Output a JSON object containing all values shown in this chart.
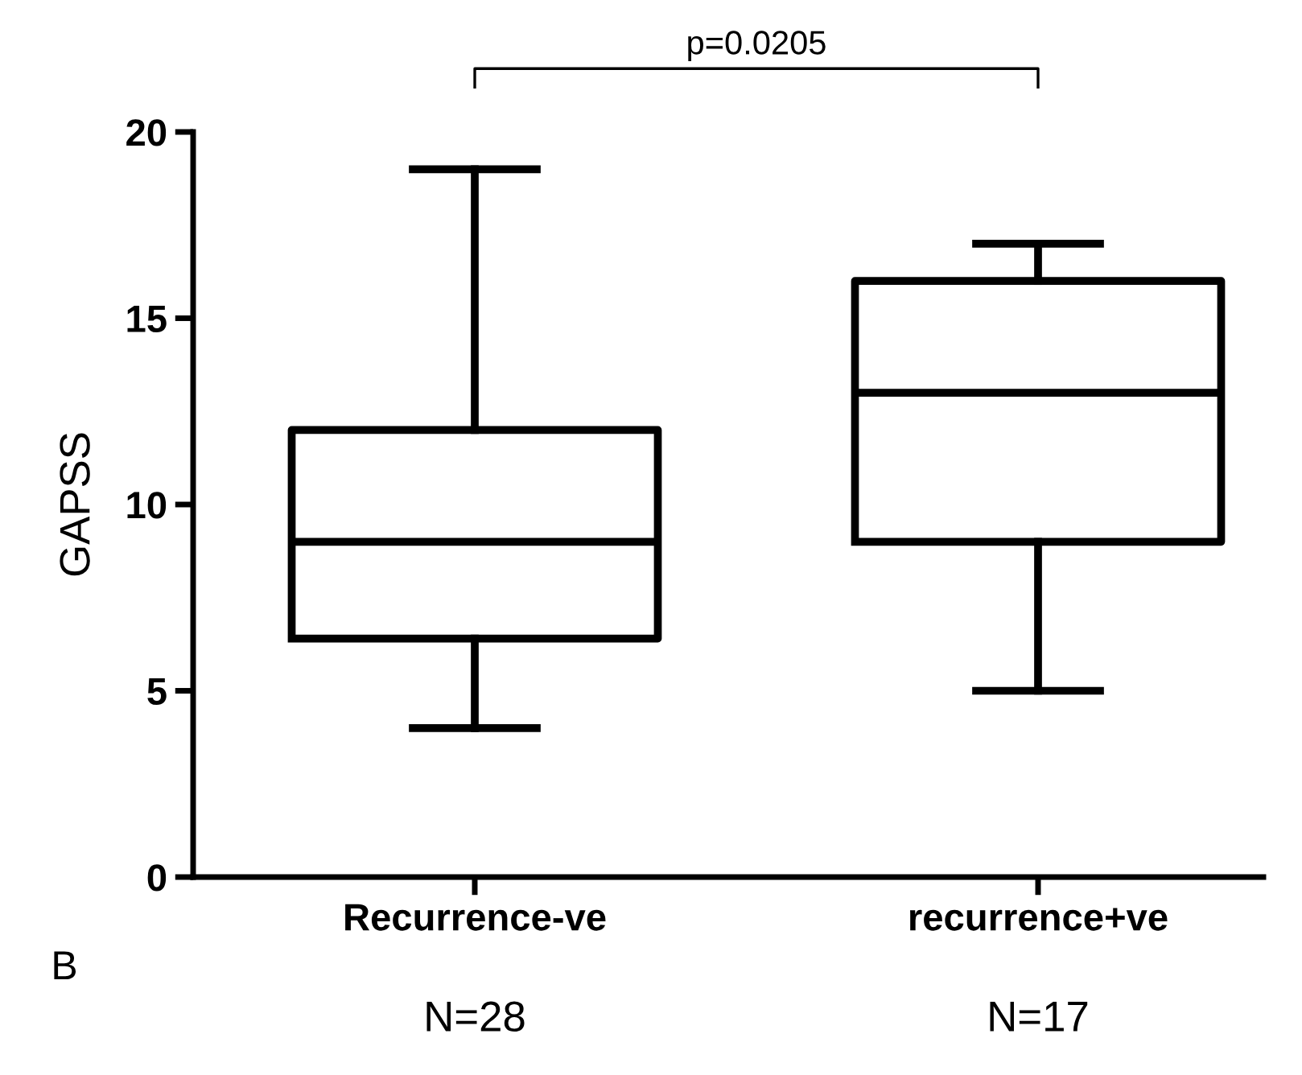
{
  "chart_data": {
    "type": "box",
    "ylabel": "GAPSS",
    "categories": [
      "Recurrence-ve",
      "recurrence+ve"
    ],
    "boxes": [
      {
        "low": 4,
        "q1": 6.4,
        "median": 9,
        "q3": 12,
        "high": 19
      },
      {
        "low": 5,
        "q1": 9,
        "median": 13,
        "q3": 16,
        "high": 17
      }
    ],
    "ylim": [
      0,
      20
    ],
    "yticks": [
      0,
      5,
      10,
      15,
      20
    ],
    "grid": false,
    "legend": false,
    "annotations": [
      "p=0.0205",
      "B",
      "N=28",
      "N=17"
    ]
  }
}
